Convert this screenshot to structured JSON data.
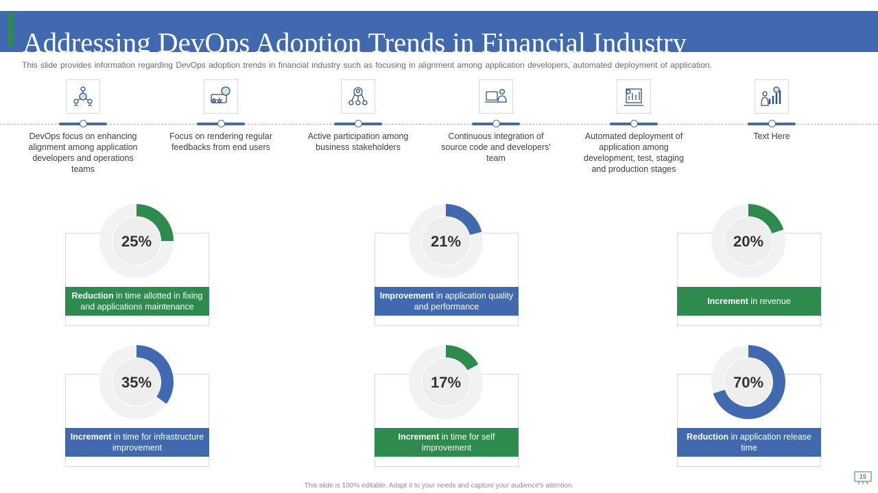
{
  "title": "Addressing DevOps Adoption Trends in Financial Industry",
  "subtitle": "This slide provides information regarding DevOps adoption trends in financial industry such as focusing in alignment among application developers, automated deployment of application.",
  "colors": {
    "blue": "#4169b0",
    "green": "#2e8b4e",
    "ring_bg": "#f2f2f2",
    "inner": "#eeeeee"
  },
  "steps": [
    {
      "icon": "team-network-icon",
      "text": "DevOps focus on enhancing alignment among application developers and operations teams"
    },
    {
      "icon": "feedback-rating-icon",
      "text": "Focus on rendering regular feedbacks from end users"
    },
    {
      "icon": "stakeholder-network-icon",
      "text": "Active participation among business stakeholders"
    },
    {
      "icon": "developer-computer-icon",
      "text": "Continuous integration of source code and developers' team"
    },
    {
      "icon": "deployment-chart-icon",
      "text": "Automated deployment of application among development, test, staging and production stages"
    },
    {
      "icon": "growth-presenter-icon",
      "text": "Text Here"
    }
  ],
  "chart_data": {
    "type": "pie",
    "title": "Addressing DevOps Adoption Trends in Financial Industry",
    "series": [
      {
        "value": 25,
        "label": "25%",
        "color": "green",
        "bold": "Reduction",
        "text": " in time allotted in fixing and applications maintenance"
      },
      {
        "value": 21,
        "label": "21%",
        "color": "blue",
        "bold": "Improvement",
        "text": " in application quality and performance"
      },
      {
        "value": 20,
        "label": "20%",
        "color": "green",
        "bold": "Increment",
        "text": " in revenue"
      },
      {
        "value": 35,
        "label": "35%",
        "color": "blue",
        "bold": "Increment",
        "text": " in time for infrastructure improvement"
      },
      {
        "value": 17,
        "label": "17%",
        "color": "green",
        "bold": "Increment",
        "text": " in time for self improvement"
      },
      {
        "value": 70,
        "label": "70%",
        "color": "blue",
        "bold": "Reduction",
        "text": " in application release time"
      }
    ]
  },
  "footer": "This slide is 100% editable. Adapt it to your needs and capture your audience's attention.",
  "page_number": "15"
}
